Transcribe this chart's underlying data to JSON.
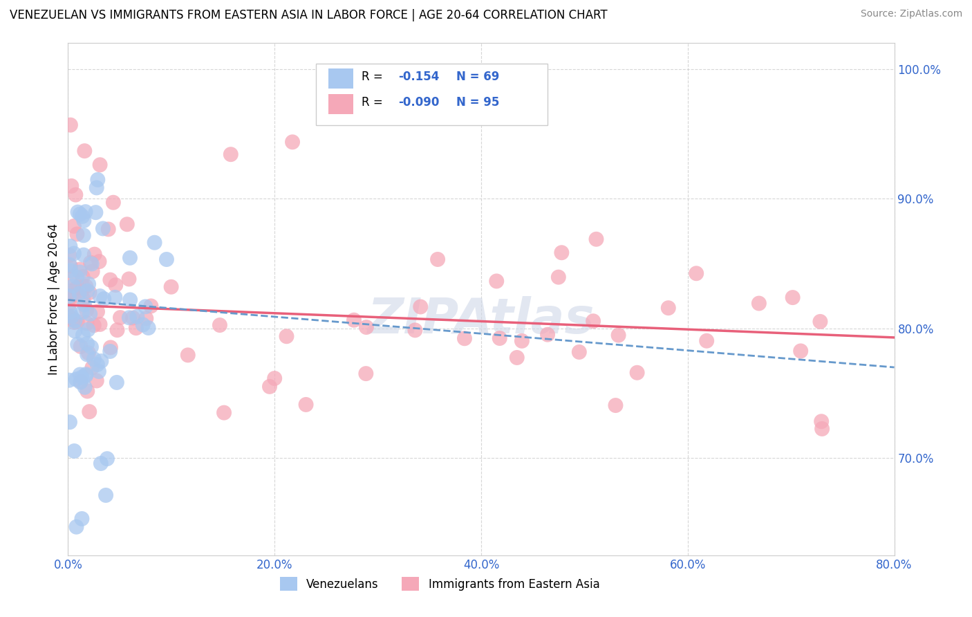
{
  "title": "VENEZUELAN VS IMMIGRANTS FROM EASTERN ASIA IN LABOR FORCE | AGE 20-64 CORRELATION CHART",
  "source": "Source: ZipAtlas.com",
  "ylabel": "In Labor Force | Age 20-64",
  "xlim": [
    0.0,
    0.8
  ],
  "ylim": [
    0.625,
    1.02
  ],
  "background_color": "#ffffff",
  "grid_color": "#cccccc",
  "venezuelan_color": "#a8c8f0",
  "eastern_asia_color": "#f5a8b8",
  "trendline_venezuelan_color": "#6699cc",
  "trendline_eastern_asia_color": "#e8607a",
  "R_venezuelan": -0.154,
  "N_venezuelan": 69,
  "R_eastern_asia": -0.09,
  "N_eastern_asia": 95,
  "legend_venezuelan_label": "Venezuelans",
  "legend_eastern_asia_label": "Immigrants from Eastern Asia",
  "ytick_values": [
    0.7,
    0.8,
    0.9,
    1.0
  ],
  "xtick_values": [
    0.0,
    0.2,
    0.4,
    0.6,
    0.8
  ]
}
